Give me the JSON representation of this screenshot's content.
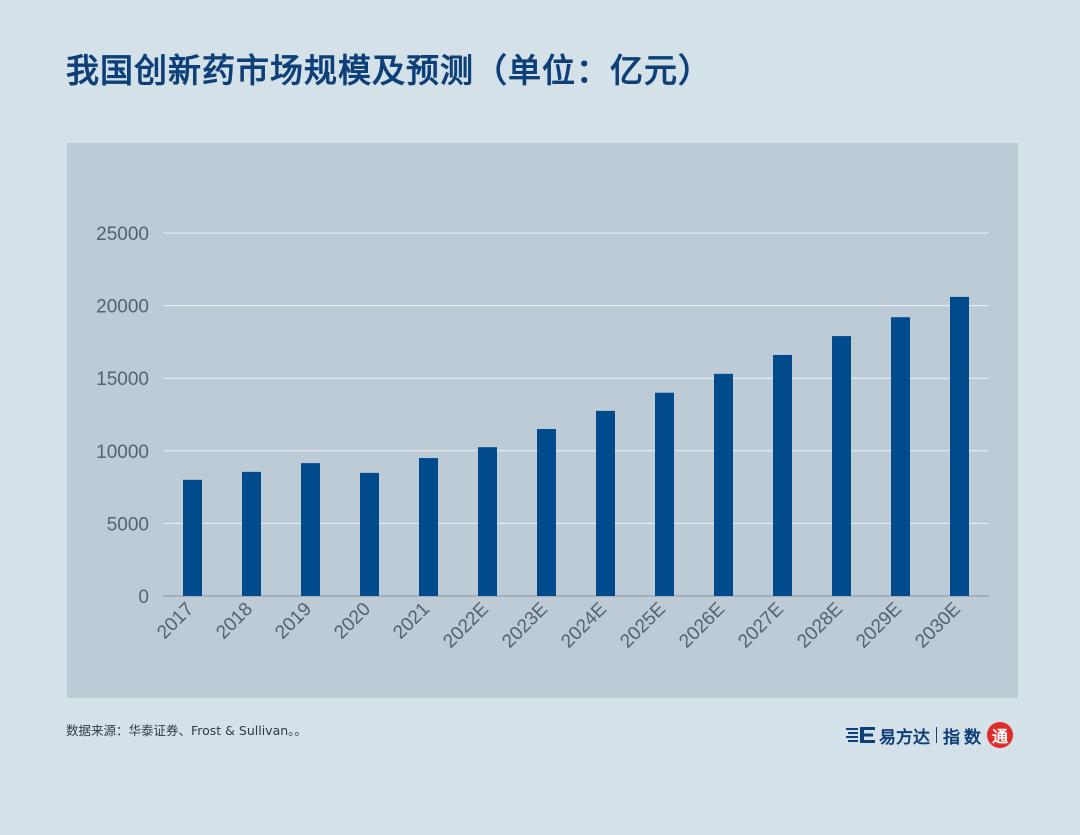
{
  "title": "我国创新药市场规模及预测（单位：亿元）",
  "source": "数据来源：华泰证券、Frost & Sullivan。。",
  "logo": {
    "brand": "易方达",
    "product_1": "指",
    "product_2": "数",
    "seal_char": "通"
  },
  "colors": {
    "bar": "#014a8c",
    "background": "#d5e1e9",
    "panel": "#bccbd6",
    "title": "#0d3f78",
    "seal": "#e02b2b"
  },
  "chart_data": {
    "type": "bar",
    "title": "我国创新药市场规模及预测（单位：亿元）",
    "xlabel": "",
    "ylabel": "",
    "unit": "亿元",
    "categories": [
      "2017",
      "2018",
      "2019",
      "2020",
      "2021",
      "2022E",
      "2023E",
      "2024E",
      "2025E",
      "2026E",
      "2027E",
      "2028E",
      "2029E",
      "2030E"
    ],
    "values": [
      8000,
      8550,
      9150,
      8480,
      9500,
      10250,
      11500,
      12750,
      14000,
      15300,
      16600,
      17900,
      19200,
      20600
    ],
    "ylim": [
      0,
      25000
    ],
    "yticks": [
      0,
      5000,
      10000,
      15000,
      20000,
      25000
    ],
    "grid": true,
    "legend": "none"
  }
}
